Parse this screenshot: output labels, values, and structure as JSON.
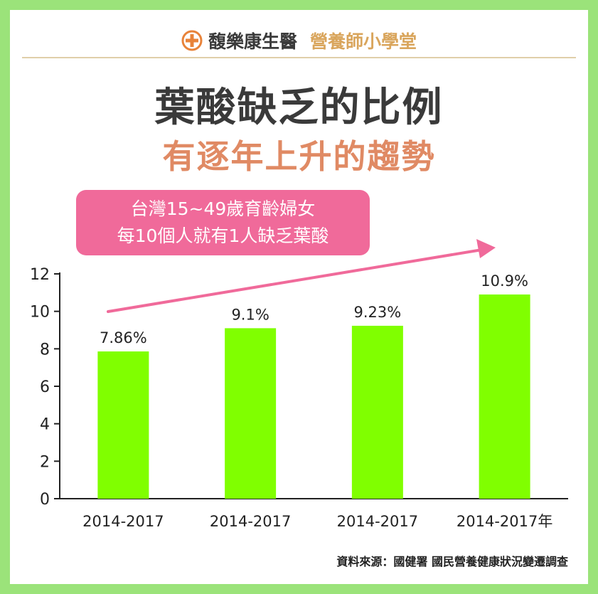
{
  "brand": {
    "name": "馥樂康生醫",
    "sub": "營養師小學堂"
  },
  "title": "葉酸缺乏的比例",
  "subtitle": "有逐年上升的趨勢",
  "callout": {
    "line1": "台灣15~49歲育齡婦女",
    "line2": "每10個人就有1人缺乏葉酸"
  },
  "chart_data": {
    "type": "bar",
    "categories": [
      "2014-2017",
      "2014-2017",
      "2014-2017",
      "2014-2017年"
    ],
    "values": [
      7.86,
      9.1,
      9.23,
      10.9
    ],
    "data_labels": [
      "7.86%",
      "9.1%",
      "9.23%",
      "10.9%"
    ],
    "ylim": [
      0,
      12
    ],
    "yticks": [
      0,
      2,
      4,
      6,
      8,
      10,
      12
    ],
    "bar_color": "#80ff00",
    "trend_arrow_color": "#f06a9a",
    "grid": false
  },
  "source": "資料來源：國健署 國民營養健康狀況變遷調查",
  "colors": {
    "frame": "#9be37a",
    "title": "#3a3a3a",
    "subtitle": "#e08a64",
    "brand_sub": "#d9a55c",
    "callout_bg": "#f06a9a"
  }
}
